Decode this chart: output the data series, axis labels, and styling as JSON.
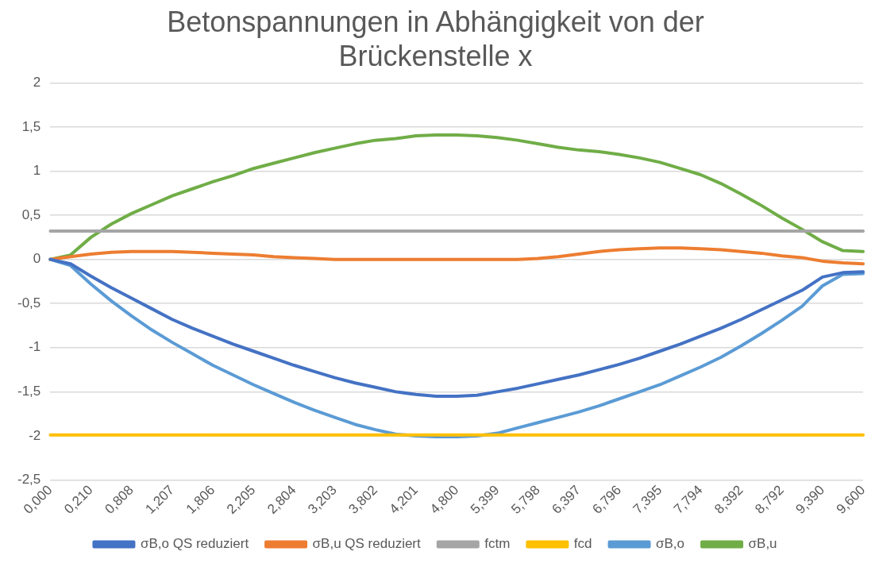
{
  "chart_data": {
    "type": "line",
    "title": "Betonspannungen in Abhängigkeit von der Brückenstelle x",
    "categories": [
      "0,000",
      null,
      "0,210",
      null,
      "0,808",
      null,
      "1,207",
      null,
      "1,806",
      null,
      "2,205",
      null,
      "2,804",
      null,
      "3,203",
      null,
      "3,802",
      null,
      "4,201",
      null,
      "4,800",
      null,
      "5,399",
      null,
      "5,798",
      null,
      "6,397",
      null,
      "6,796",
      null,
      "7,395",
      null,
      "7,794",
      null,
      "8,392",
      null,
      "8,792",
      null,
      "9,390",
      null,
      "9,600"
    ],
    "series": [
      {
        "name": "σB,o QS reduziert",
        "color": "#4472c4",
        "values": [
          0,
          -0.05,
          -0.19,
          -0.32,
          -0.44,
          -0.56,
          -0.68,
          -0.78,
          -0.87,
          -0.96,
          -1.04,
          -1.12,
          -1.2,
          -1.27,
          -1.34,
          -1.4,
          -1.45,
          -1.5,
          -1.53,
          -1.55,
          -1.55,
          -1.54,
          -1.5,
          -1.46,
          -1.41,
          -1.36,
          -1.31,
          -1.25,
          -1.19,
          -1.12,
          -1.04,
          -0.96,
          -0.87,
          -0.78,
          -0.68,
          -0.57,
          -0.46,
          -0.35,
          -0.2,
          -0.15,
          -0.14
        ]
      },
      {
        "name": "σB,u QS reduziert",
        "color": "#ed7d31",
        "values": [
          0,
          0.03,
          0.06,
          0.08,
          0.09,
          0.09,
          0.09,
          0.08,
          0.07,
          0.06,
          0.05,
          0.03,
          0.02,
          0.01,
          0,
          0,
          0,
          0,
          0,
          0,
          0,
          0,
          0,
          0,
          0.01,
          0.03,
          0.06,
          0.09,
          0.11,
          0.12,
          0.13,
          0.13,
          0.12,
          0.11,
          0.09,
          0.07,
          0.04,
          0.02,
          -0.02,
          -0.04,
          -0.05
        ]
      },
      {
        "name": "fctm",
        "color": "#a5a5a5",
        "values": [
          0.32,
          0.32,
          0.32,
          0.32,
          0.32,
          0.32,
          0.32,
          0.32,
          0.32,
          0.32,
          0.32,
          0.32,
          0.32,
          0.32,
          0.32,
          0.32,
          0.32,
          0.32,
          0.32,
          0.32,
          0.32,
          0.32,
          0.32,
          0.32,
          0.32,
          0.32,
          0.32,
          0.32,
          0.32,
          0.32,
          0.32,
          0.32,
          0.32,
          0.32,
          0.32,
          0.32,
          0.32,
          0.32,
          0.32,
          0.32,
          0.32
        ]
      },
      {
        "name": "fcd",
        "color": "#ffc000",
        "values": [
          -1.99,
          -1.99,
          -1.99,
          -1.99,
          -1.99,
          -1.99,
          -1.99,
          -1.99,
          -1.99,
          -1.99,
          -1.99,
          -1.99,
          -1.99,
          -1.99,
          -1.99,
          -1.99,
          -1.99,
          -1.99,
          -1.99,
          -1.99,
          -1.99,
          -1.99,
          -1.99,
          -1.99,
          -1.99,
          -1.99,
          -1.99,
          -1.99,
          -1.99,
          -1.99,
          -1.99,
          -1.99,
          -1.99,
          -1.99,
          -1.99,
          -1.99,
          -1.99,
          -1.99,
          -1.99,
          -1.99,
          -1.99
        ]
      },
      {
        "name": "σB,o",
        "color": "#5b9bd5",
        "values": [
          0,
          -0.07,
          -0.28,
          -0.47,
          -0.64,
          -0.8,
          -0.94,
          -1.07,
          -1.2,
          -1.31,
          -1.42,
          -1.52,
          -1.62,
          -1.71,
          -1.79,
          -1.87,
          -1.93,
          -1.98,
          -2.0,
          -2.01,
          -2.01,
          -2.0,
          -1.97,
          -1.91,
          -1.85,
          -1.79,
          -1.73,
          -1.66,
          -1.58,
          -1.5,
          -1.42,
          -1.32,
          -1.22,
          -1.11,
          -0.98,
          -0.84,
          -0.69,
          -0.53,
          -0.3,
          -0.17,
          -0.16
        ]
      },
      {
        "name": "σB,u",
        "color": "#70ad47",
        "values": [
          0,
          0.05,
          0.25,
          0.4,
          0.52,
          0.62,
          0.72,
          0.8,
          0.88,
          0.95,
          1.03,
          1.09,
          1.15,
          1.21,
          1.26,
          1.31,
          1.35,
          1.37,
          1.4,
          1.41,
          1.41,
          1.4,
          1.38,
          1.35,
          1.31,
          1.27,
          1.24,
          1.22,
          1.19,
          1.15,
          1.1,
          1.03,
          0.96,
          0.86,
          0.74,
          0.61,
          0.47,
          0.34,
          0.2,
          0.1,
          0.09
        ]
      }
    ],
    "ylim": [
      -2.5,
      2
    ],
    "yticks": [
      {
        "value": -2.5,
        "label": "-2,5"
      },
      -2,
      {
        "value": -1.5,
        "label": "-1,5"
      },
      -1,
      {
        "value": -0.5,
        "label": "-0,5"
      },
      0,
      {
        "value": 0.5,
        "label": "0,5"
      },
      1,
      {
        "value": 1.5,
        "label": "1,5"
      },
      2
    ],
    "grid": "y",
    "legend": "bottom",
    "marker": "none",
    "line_style": "solid"
  }
}
